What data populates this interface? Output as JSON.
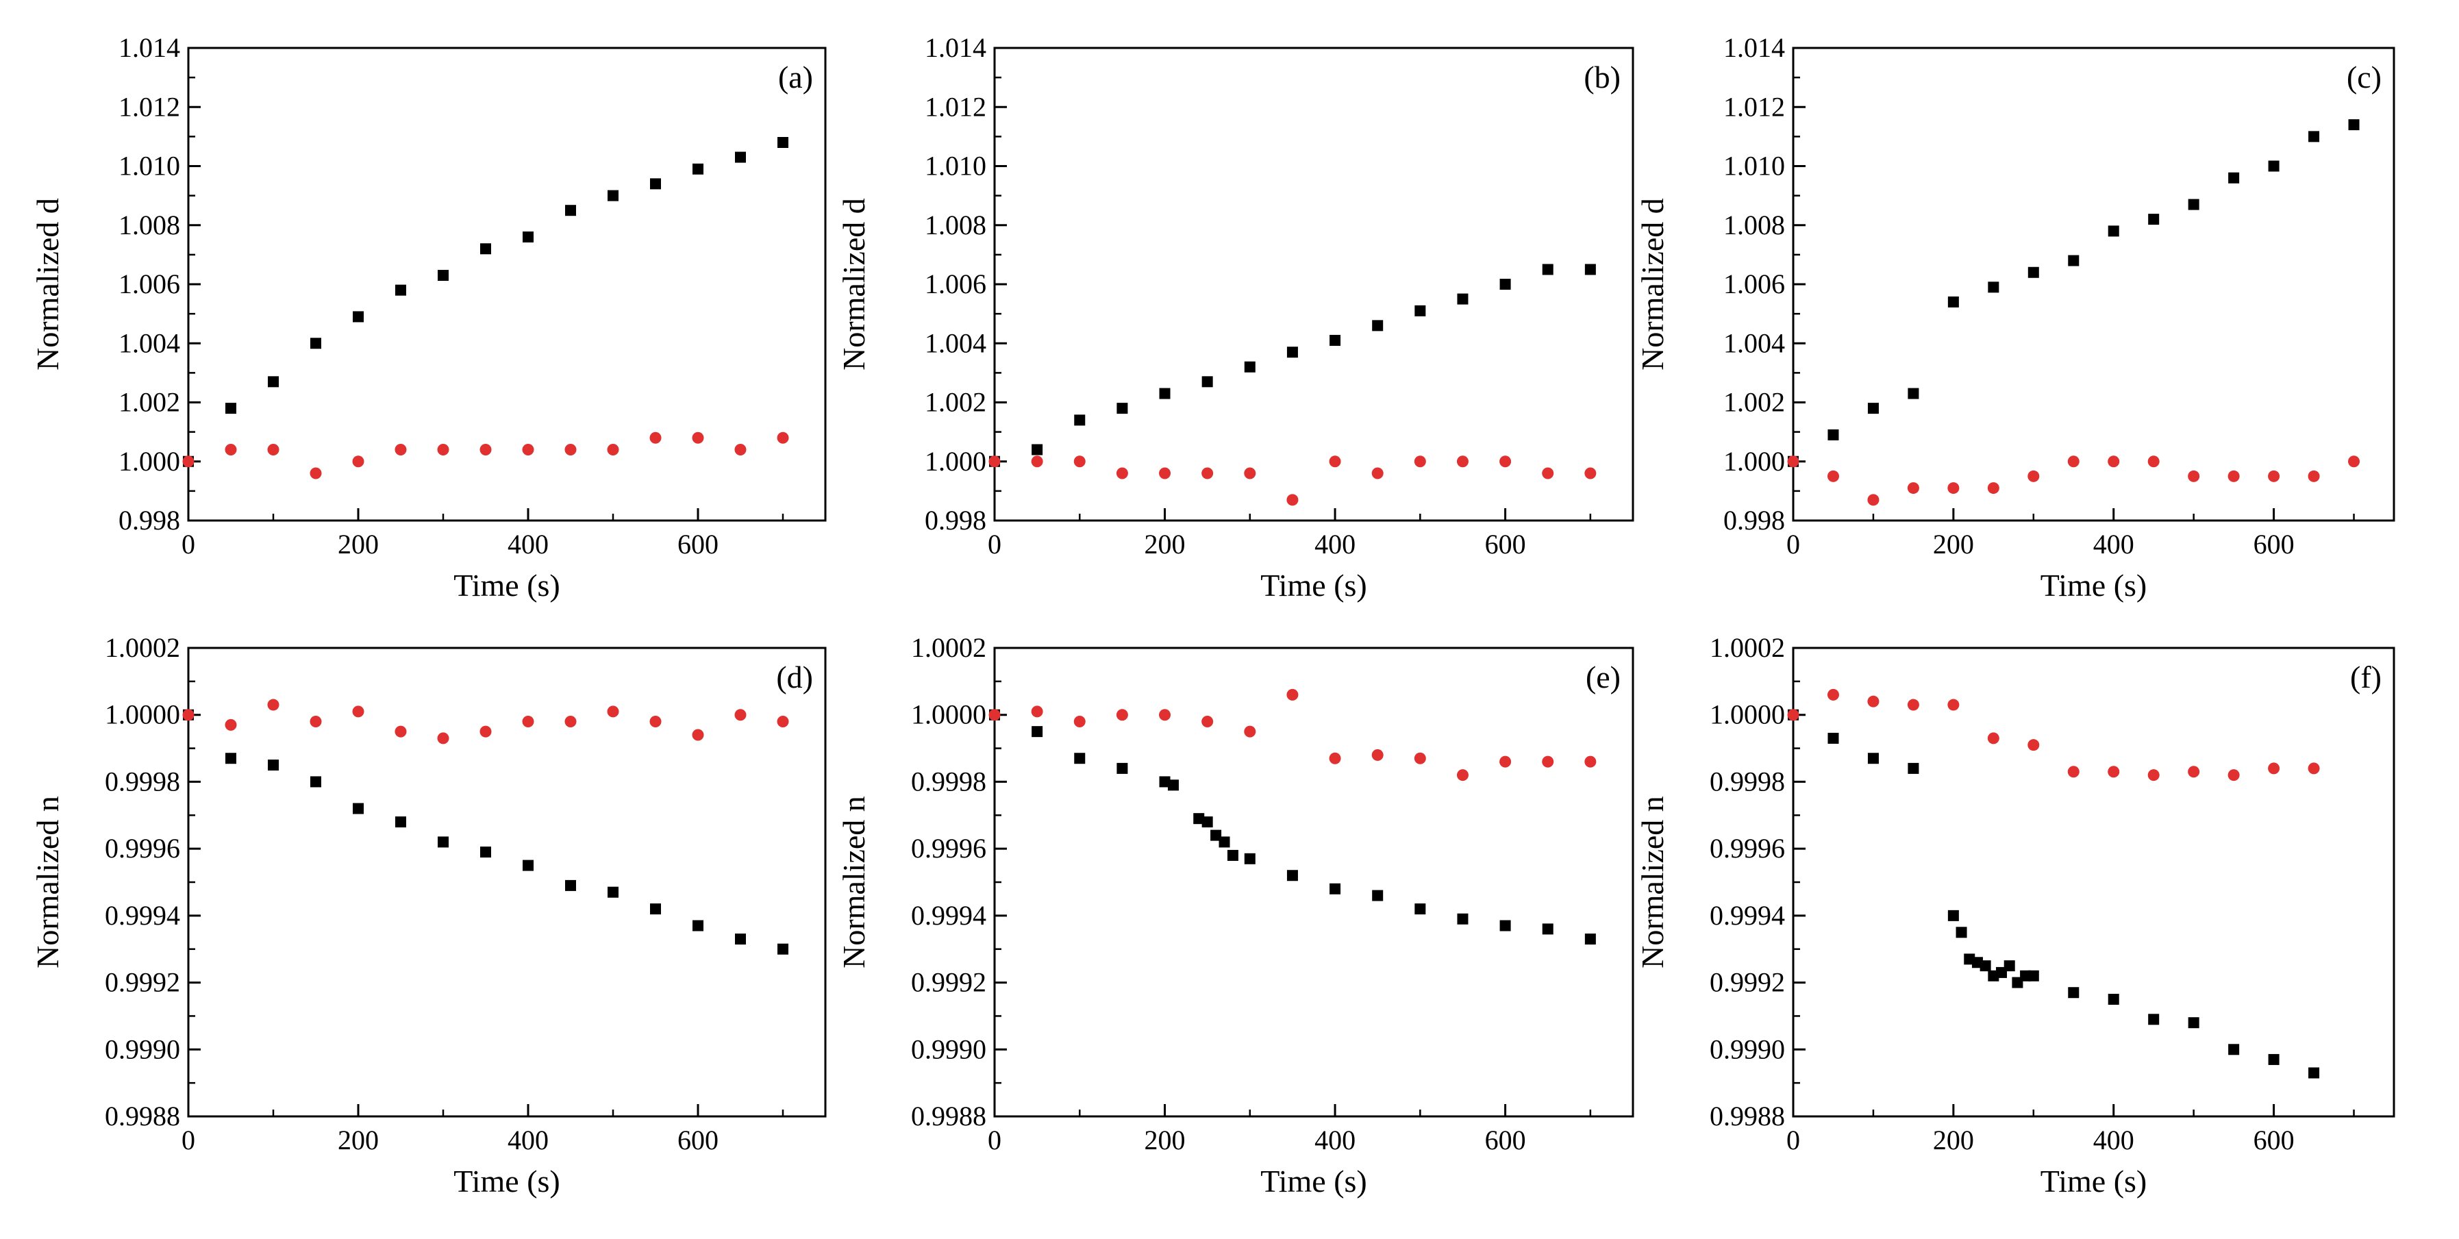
{
  "figure": {
    "background": "#ffffff",
    "series_colors": {
      "black": "#000000",
      "red": "#e03030"
    }
  },
  "chart_data": [
    {
      "type": "scatter",
      "panel_label": "(a)",
      "xlabel": "Time (s)",
      "ylabel": "Normalized d",
      "xlim": [
        0,
        750
      ],
      "ylim": [
        0.998,
        1.014
      ],
      "xticks": [
        "0",
        "200",
        "400",
        "600"
      ],
      "yticks": [
        "0.998",
        "1.000",
        "1.002",
        "1.004",
        "1.006",
        "1.008",
        "1.010",
        "1.012",
        "1.014"
      ],
      "grid": false,
      "series": [
        {
          "marker": "square",
          "color": "#000000",
          "x": [
            0,
            50,
            100,
            150,
            200,
            250,
            300,
            350,
            400,
            450,
            500,
            550,
            600,
            650,
            700
          ],
          "y": [
            1.0,
            1.0018,
            1.0027,
            1.004,
            1.0049,
            1.0058,
            1.0063,
            1.0072,
            1.0076,
            1.0085,
            1.009,
            1.0094,
            1.0099,
            1.0103,
            1.0108
          ]
        },
        {
          "marker": "circle",
          "color": "#e03030",
          "x": [
            0,
            50,
            100,
            150,
            200,
            250,
            300,
            350,
            400,
            450,
            500,
            550,
            600,
            650,
            700
          ],
          "y": [
            1.0,
            1.0004,
            1.0004,
            0.9996,
            1.0,
            1.0004,
            1.0004,
            1.0004,
            1.0004,
            1.0004,
            1.0004,
            1.0008,
            1.0008,
            1.0004,
            1.0008
          ]
        }
      ]
    },
    {
      "type": "scatter",
      "panel_label": "(b)",
      "xlabel": "Time (s)",
      "ylabel": "Normalized d",
      "xlim": [
        0,
        750
      ],
      "ylim": [
        0.998,
        1.014
      ],
      "xticks": [
        "0",
        "200",
        "400",
        "600"
      ],
      "yticks": [
        "0.998",
        "1.000",
        "1.002",
        "1.004",
        "1.006",
        "1.008",
        "1.010",
        "1.012",
        "1.014"
      ],
      "grid": false,
      "series": [
        {
          "marker": "square",
          "color": "#000000",
          "x": [
            0,
            50,
            100,
            150,
            200,
            250,
            300,
            350,
            400,
            450,
            500,
            550,
            600,
            650,
            700
          ],
          "y": [
            1.0,
            1.0004,
            1.0014,
            1.0018,
            1.0023,
            1.0027,
            1.0032,
            1.0037,
            1.0041,
            1.0046,
            1.0051,
            1.0055,
            1.006,
            1.0065,
            1.0065
          ]
        },
        {
          "marker": "circle",
          "color": "#e03030",
          "x": [
            0,
            50,
            100,
            150,
            200,
            250,
            300,
            350,
            400,
            450,
            500,
            550,
            600,
            650,
            700
          ],
          "y": [
            1.0,
            1.0,
            1.0,
            0.9996,
            0.9996,
            0.9996,
            0.9996,
            0.9987,
            1.0,
            0.9996,
            1.0,
            1.0,
            1.0,
            0.9996,
            0.9996
          ]
        }
      ]
    },
    {
      "type": "scatter",
      "panel_label": "(c)",
      "xlabel": "Time (s)",
      "ylabel": "Normalized d",
      "xlim": [
        0,
        750
      ],
      "ylim": [
        0.998,
        1.014
      ],
      "xticks": [
        "0",
        "200",
        "400",
        "600"
      ],
      "yticks": [
        "0.998",
        "1.000",
        "1.002",
        "1.004",
        "1.006",
        "1.008",
        "1.010",
        "1.012",
        "1.014"
      ],
      "grid": false,
      "series": [
        {
          "marker": "square",
          "color": "#000000",
          "x": [
            0,
            50,
            100,
            150,
            200,
            250,
            300,
            350,
            400,
            450,
            500,
            550,
            600,
            650,
            700
          ],
          "y": [
            1.0,
            1.0009,
            1.0018,
            1.0023,
            1.0054,
            1.0059,
            1.0064,
            1.0068,
            1.0078,
            1.0082,
            1.0087,
            1.0096,
            1.01,
            1.011,
            1.0114
          ]
        },
        {
          "marker": "circle",
          "color": "#e03030",
          "x": [
            0,
            50,
            100,
            150,
            200,
            250,
            300,
            350,
            400,
            450,
            500,
            550,
            600,
            650,
            700
          ],
          "y": [
            1.0,
            0.9995,
            0.9987,
            0.9991,
            0.9991,
            0.9991,
            0.9995,
            1.0,
            1.0,
            1.0,
            0.9995,
            0.9995,
            0.9995,
            0.9995,
            1.0
          ]
        }
      ]
    },
    {
      "type": "scatter",
      "panel_label": "(d)",
      "xlabel": "Time (s)",
      "ylabel": "Normalized n",
      "xlim": [
        0,
        750
      ],
      "ylim": [
        0.9988,
        1.0002
      ],
      "xticks": [
        "0",
        "200",
        "400",
        "600"
      ],
      "yticks": [
        "0.9988",
        "0.9990",
        "0.9992",
        "0.9994",
        "0.9996",
        "0.9998",
        "1.0000",
        "1.0002"
      ],
      "grid": false,
      "series": [
        {
          "marker": "square",
          "color": "#000000",
          "x": [
            0,
            50,
            100,
            150,
            200,
            250,
            300,
            350,
            400,
            450,
            500,
            550,
            600,
            650,
            700
          ],
          "y": [
            1.0,
            0.99987,
            0.99985,
            0.9998,
            0.99972,
            0.99968,
            0.99962,
            0.99959,
            0.99955,
            0.99949,
            0.99947,
            0.99942,
            0.99937,
            0.99933,
            0.9993
          ]
        },
        {
          "marker": "circle",
          "color": "#e03030",
          "x": [
            0,
            50,
            100,
            150,
            200,
            250,
            300,
            350,
            400,
            450,
            500,
            550,
            600,
            650,
            700
          ],
          "y": [
            1.0,
            0.99997,
            1.00003,
            0.99998,
            1.00001,
            0.99995,
            0.99993,
            0.99995,
            0.99998,
            0.99998,
            1.00001,
            0.99998,
            0.99994,
            1.0,
            0.99998
          ]
        }
      ]
    },
    {
      "type": "scatter",
      "panel_label": "(e)",
      "xlabel": "Time (s)",
      "ylabel": "Normalized n",
      "xlim": [
        0,
        750
      ],
      "ylim": [
        0.9988,
        1.0002
      ],
      "xticks": [
        "0",
        "200",
        "400",
        "600"
      ],
      "yticks": [
        "0.9988",
        "0.9990",
        "0.9992",
        "0.9994",
        "0.9996",
        "0.9998",
        "1.0000",
        "1.0002"
      ],
      "grid": false,
      "series": [
        {
          "marker": "square",
          "color": "#000000",
          "x": [
            0,
            50,
            100,
            150,
            200,
            210,
            240,
            250,
            260,
            270,
            280,
            300,
            350,
            400,
            450,
            500,
            550,
            600,
            650,
            700
          ],
          "y": [
            1.0,
            0.99995,
            0.99987,
            0.99984,
            0.9998,
            0.99979,
            0.99969,
            0.99968,
            0.99964,
            0.99962,
            0.99958,
            0.99957,
            0.99952,
            0.99948,
            0.99946,
            0.99942,
            0.99939,
            0.99937,
            0.99936,
            0.99933
          ]
        },
        {
          "marker": "circle",
          "color": "#e03030",
          "x": [
            0,
            50,
            100,
            150,
            200,
            250,
            300,
            350,
            400,
            450,
            500,
            550,
            600,
            650,
            700
          ],
          "y": [
            1.0,
            1.00001,
            0.99998,
            1.0,
            1.0,
            0.99998,
            0.99995,
            1.00006,
            0.99987,
            0.99988,
            0.99987,
            0.99982,
            0.99986,
            0.99986,
            0.99986
          ]
        }
      ]
    },
    {
      "type": "scatter",
      "panel_label": "(f)",
      "xlabel": "Time (s)",
      "ylabel": "Normalized n",
      "xlim": [
        0,
        750
      ],
      "ylim": [
        0.9988,
        1.0002
      ],
      "xticks": [
        "0",
        "200",
        "400",
        "600"
      ],
      "yticks": [
        "0.9988",
        "0.9990",
        "0.9992",
        "0.9994",
        "0.9996",
        "0.9998",
        "1.0000",
        "1.0002"
      ],
      "grid": false,
      "series": [
        {
          "marker": "square",
          "color": "#000000",
          "x": [
            0,
            50,
            100,
            150,
            200,
            210,
            220,
            230,
            240,
            250,
            260,
            270,
            280,
            290,
            300,
            350,
            400,
            450,
            500,
            550,
            600,
            650
          ],
          "y": [
            1.0,
            0.99993,
            0.99987,
            0.99984,
            0.9994,
            0.99935,
            0.99927,
            0.99926,
            0.99925,
            0.99922,
            0.99923,
            0.99925,
            0.9992,
            0.99922,
            0.99922,
            0.99917,
            0.99915,
            0.99909,
            0.99908,
            0.999,
            0.99897,
            0.99893
          ]
        },
        {
          "marker": "circle",
          "color": "#e03030",
          "x": [
            0,
            50,
            100,
            150,
            200,
            250,
            300,
            350,
            400,
            450,
            500,
            550,
            600,
            650
          ],
          "y": [
            1.0,
            1.00006,
            1.00004,
            1.00003,
            1.00003,
            0.99993,
            0.99991,
            0.99983,
            0.99983,
            0.99982,
            0.99983,
            0.99982,
            0.99984,
            0.99984
          ]
        }
      ]
    }
  ]
}
